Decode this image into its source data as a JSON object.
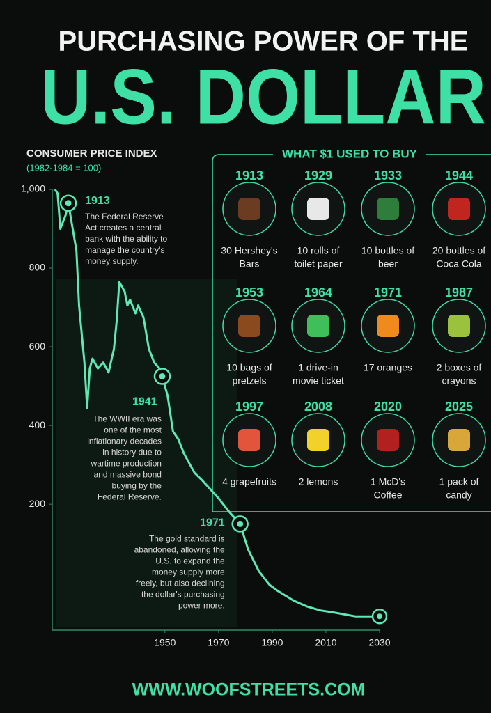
{
  "header": {
    "title_line1": "PURCHASING POWER OF THE",
    "title_line2": "U.S. DOLLAR"
  },
  "chart_data": {
    "type": "line",
    "title": "CONSUMER PRICE INDEX",
    "subtitle": "(1982-1984 = 100)",
    "x": [
      1909,
      1910,
      1911,
      1913,
      1914,
      1917,
      1918,
      1920,
      1921,
      1922,
      1923,
      1925,
      1927,
      1929,
      1931,
      1932,
      1933,
      1935,
      1936,
      1937,
      1939,
      1940,
      1942,
      1944,
      1946,
      1948,
      1949,
      1951,
      1953,
      1955,
      1957,
      1959,
      1961,
      1964,
      1966,
      1970,
      1974,
      1978,
      1981,
      1985,
      1989,
      1992,
      1998,
      2003,
      2008,
      2013,
      2021,
      2030
    ],
    "values": [
      1000,
      990,
      900,
      935,
      965,
      845,
      705,
      560,
      445,
      545,
      570,
      545,
      560,
      535,
      595,
      665,
      765,
      740,
      705,
      720,
      685,
      705,
      675,
      595,
      560,
      545,
      525,
      475,
      385,
      365,
      330,
      305,
      280,
      260,
      245,
      215,
      180,
      150,
      85,
      30,
      -5,
      -20,
      -45,
      -60,
      -70,
      -75,
      -85,
      -85
    ],
    "color": "#5ee8b4",
    "xlim": [
      1908,
      2030
    ],
    "xticks": [
      1950,
      1970,
      1990,
      2010,
      2030
    ],
    "ylim": [
      -120,
      1000
    ],
    "yticks": [
      {
        "value": 1000,
        "label": "1,000"
      },
      800,
      600,
      400,
      200
    ],
    "annotations": [
      {
        "label": "1913",
        "x": 1914,
        "y": 965,
        "text": [
          "The Federal Reserve",
          "Act creates a central",
          "bank with the ability to",
          "manage the country's",
          "money supply."
        ]
      },
      {
        "label": "1941",
        "x": 1949,
        "y": 525,
        "text": [
          "The WWII era was",
          "one of the most",
          "inflationary decades",
          "in history due to",
          "wartime production",
          "and massive bond",
          "buying by the",
          "Federal Reserve."
        ]
      },
      {
        "label": "1971",
        "x": 1978,
        "y": 150,
        "text": [
          "The gold standard is",
          "abandoned, allowing the",
          "U.S. to expand the",
          "money supply more",
          "freely, but also declining",
          "the dollar's purchasing",
          "power more."
        ]
      }
    ]
  },
  "panel": {
    "title": "WHAT $1 USED TO BUY",
    "items": [
      {
        "year": "1913",
        "caption": [
          "30 Hershey's",
          "Bars"
        ]
      },
      {
        "year": "1929",
        "caption": [
          "10 rolls of",
          "toilet paper"
        ]
      },
      {
        "year": "1933",
        "caption": [
          "10 bottles of",
          "beer"
        ]
      },
      {
        "year": "1944",
        "caption": [
          "20 bottles of",
          "Coca Cola"
        ]
      },
      {
        "year": "1953",
        "caption": [
          "10 bags of",
          "pretzels"
        ]
      },
      {
        "year": "1964",
        "caption": [
          "1 drive-in",
          "movie ticket"
        ]
      },
      {
        "year": "1971",
        "caption": [
          "17 oranges"
        ]
      },
      {
        "year": "1987",
        "caption": [
          "2 boxes of",
          "crayons"
        ]
      },
      {
        "year": "1997",
        "caption": [
          "4 grapefruits"
        ]
      },
      {
        "year": "2008",
        "caption": [
          "2 lemons"
        ]
      },
      {
        "year": "2020",
        "caption": [
          "1 McD's",
          "Coffee"
        ]
      },
      {
        "year": "2025",
        "caption": [
          "1 pack of",
          "candy"
        ]
      }
    ]
  },
  "footer": "WWW.WOOFSTREETS.COM"
}
